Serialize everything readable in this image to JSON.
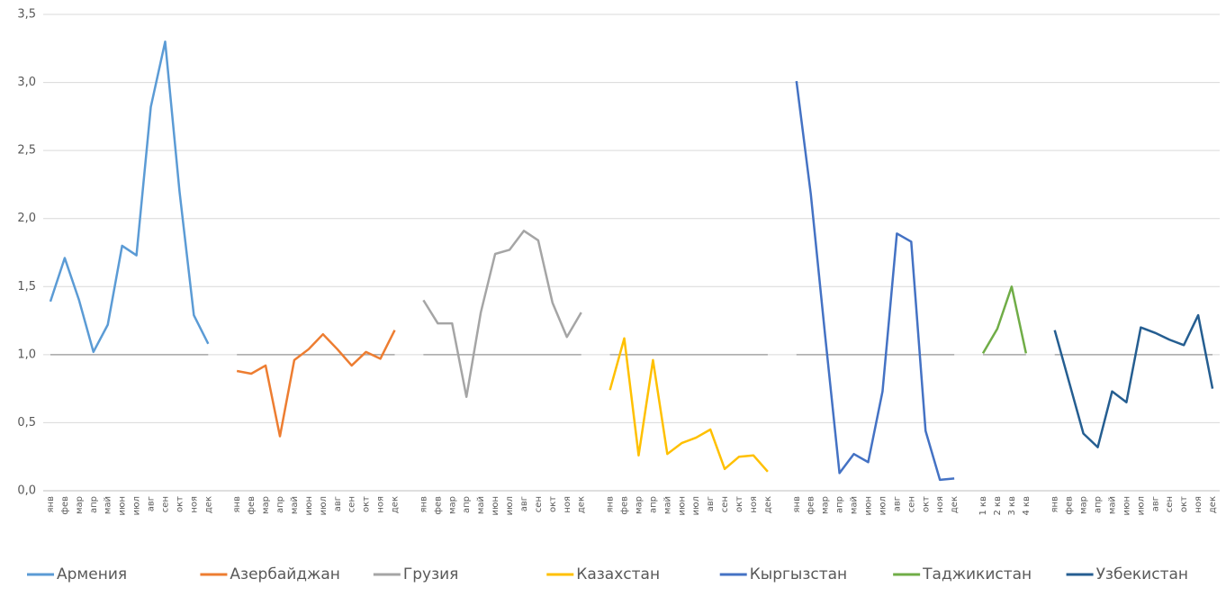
{
  "chart_data": {
    "type": "line",
    "categories": [
      "янв",
      "фев",
      "мар",
      "апр",
      "май",
      "июн",
      "июл",
      "авг",
      "сен",
      "окт",
      "ноя",
      "дек",
      null,
      "янв",
      "фев",
      "мар",
      "апр",
      "май",
      "июн",
      "июл",
      "авг",
      "сен",
      "окт",
      "ноя",
      "дек",
      null,
      "янв",
      "фев",
      "мар",
      "апр",
      "май",
      "июн",
      "июл",
      "авг",
      "сен",
      "окт",
      "ноя",
      "дек",
      null,
      "янв",
      "фев",
      "мар",
      "апр",
      "май",
      "июн",
      "июл",
      "авг",
      "сен",
      "окт",
      "ноя",
      "дек",
      null,
      "янв",
      "фев",
      "мар",
      "апр",
      "май",
      "июн",
      "июл",
      "авг",
      "сен",
      "окт",
      "ноя",
      "дек",
      null,
      "1 кв",
      "2 кв",
      "3 кв",
      "4 кв",
      null,
      "янв",
      "фев",
      "мар",
      "апр",
      "май",
      "июн",
      "июл",
      "авг",
      "сен",
      "окт",
      "ноя",
      "дек"
    ],
    "series": [
      {
        "name": "Армения",
        "color": "#5b9bd5",
        "values": [
          1.39,
          1.71,
          1.4,
          1.02,
          1.22,
          1.8,
          1.73,
          2.82,
          3.3,
          2.2,
          1.29,
          1.08,
          null,
          null,
          null,
          null,
          null,
          null,
          null,
          null,
          null,
          null,
          null,
          null,
          null,
          null,
          null,
          null,
          null,
          null,
          null,
          null,
          null,
          null,
          null,
          null,
          null,
          null,
          null,
          null,
          null,
          null,
          null,
          null,
          null,
          null,
          null,
          null,
          null,
          null,
          null,
          null,
          null,
          null,
          null,
          null,
          null,
          null,
          null,
          null,
          null,
          null,
          null,
          null,
          null,
          null,
          null,
          null,
          null,
          null,
          null,
          null,
          null,
          null,
          null,
          null,
          null,
          null,
          null,
          null,
          null,
          null
        ]
      },
      {
        "name": "Азербайджан",
        "color": "#ed7d31",
        "values": [
          null,
          null,
          null,
          null,
          null,
          null,
          null,
          null,
          null,
          null,
          null,
          null,
          null,
          0.88,
          0.86,
          0.92,
          0.4,
          0.96,
          1.04,
          1.15,
          1.04,
          0.92,
          1.02,
          0.97,
          1.18,
          null,
          null,
          null,
          null,
          null,
          null,
          null,
          null,
          null,
          null,
          null,
          null,
          null,
          null,
          null,
          null,
          null,
          null,
          null,
          null,
          null,
          null,
          null,
          null,
          null,
          null,
          null,
          null,
          null,
          null,
          null,
          null,
          null,
          null,
          null,
          null,
          null,
          null,
          null,
          null,
          null,
          null,
          null,
          null,
          null,
          null,
          null,
          null,
          null,
          null,
          null,
          null,
          null,
          null,
          null,
          null,
          null
        ]
      },
      {
        "name": "Грузия",
        "color": "#a5a5a5",
        "values": [
          null,
          null,
          null,
          null,
          null,
          null,
          null,
          null,
          null,
          null,
          null,
          null,
          null,
          null,
          null,
          null,
          null,
          null,
          null,
          null,
          null,
          null,
          null,
          null,
          null,
          null,
          1.4,
          1.23,
          1.23,
          0.69,
          1.31,
          1.74,
          1.77,
          1.91,
          1.84,
          1.38,
          1.13,
          1.31,
          null,
          null,
          null,
          null,
          null,
          null,
          null,
          null,
          null,
          null,
          null,
          null,
          null,
          null,
          null,
          null,
          null,
          null,
          null,
          null,
          null,
          null,
          null,
          null,
          null,
          null,
          null,
          null,
          null,
          null,
          null,
          null,
          null,
          null,
          null,
          null,
          null,
          null,
          null,
          null,
          null,
          null,
          null,
          null
        ]
      },
      {
        "name": "Казахстан",
        "color": "#ffc000",
        "values": [
          null,
          null,
          null,
          null,
          null,
          null,
          null,
          null,
          null,
          null,
          null,
          null,
          null,
          null,
          null,
          null,
          null,
          null,
          null,
          null,
          null,
          null,
          null,
          null,
          null,
          null,
          null,
          null,
          null,
          null,
          null,
          null,
          null,
          null,
          null,
          null,
          null,
          null,
          null,
          0.74,
          1.12,
          0.26,
          0.96,
          0.27,
          0.35,
          0.39,
          0.45,
          0.16,
          0.25,
          0.26,
          0.14,
          null,
          null,
          null,
          null,
          null,
          null,
          null,
          null,
          null,
          null,
          null,
          null,
          null,
          null,
          null,
          null,
          null,
          null,
          null,
          null,
          null,
          null,
          null,
          null,
          null,
          null,
          null,
          null,
          null,
          null,
          null
        ]
      },
      {
        "name": "Кыргызстан",
        "color": "#4472c4",
        "values": [
          null,
          null,
          null,
          null,
          null,
          null,
          null,
          null,
          null,
          null,
          null,
          null,
          null,
          null,
          null,
          null,
          null,
          null,
          null,
          null,
          null,
          null,
          null,
          null,
          null,
          null,
          null,
          null,
          null,
          null,
          null,
          null,
          null,
          null,
          null,
          null,
          null,
          null,
          null,
          null,
          null,
          null,
          null,
          null,
          null,
          null,
          null,
          null,
          null,
          null,
          null,
          null,
          3.01,
          2.18,
          1.14,
          0.13,
          0.27,
          0.21,
          0.73,
          1.89,
          1.83,
          0.44,
          0.08,
          0.09,
          null,
          null,
          null,
          null,
          null,
          null,
          null,
          null,
          null,
          null,
          null,
          null,
          null,
          null,
          null,
          null,
          null,
          null
        ]
      },
      {
        "name": "Таджикистан",
        "color": "#70ad47",
        "values": [
          null,
          null,
          null,
          null,
          null,
          null,
          null,
          null,
          null,
          null,
          null,
          null,
          null,
          null,
          null,
          null,
          null,
          null,
          null,
          null,
          null,
          null,
          null,
          null,
          null,
          null,
          null,
          null,
          null,
          null,
          null,
          null,
          null,
          null,
          null,
          null,
          null,
          null,
          null,
          null,
          null,
          null,
          null,
          null,
          null,
          null,
          null,
          null,
          null,
          null,
          null,
          null,
          null,
          null,
          null,
          null,
          null,
          null,
          null,
          null,
          null,
          null,
          null,
          null,
          null,
          1.01,
          1.19,
          1.5,
          1.01,
          null,
          null,
          null,
          null,
          null,
          null,
          null,
          null,
          null,
          null,
          null,
          null,
          null
        ]
      },
      {
        "name": "Узбекистан",
        "color": "#255e91",
        "values": [
          null,
          null,
          null,
          null,
          null,
          null,
          null,
          null,
          null,
          null,
          null,
          null,
          null,
          null,
          null,
          null,
          null,
          null,
          null,
          null,
          null,
          null,
          null,
          null,
          null,
          null,
          null,
          null,
          null,
          null,
          null,
          null,
          null,
          null,
          null,
          null,
          null,
          null,
          null,
          null,
          null,
          null,
          null,
          null,
          null,
          null,
          null,
          null,
          null,
          null,
          null,
          null,
          null,
          null,
          null,
          null,
          null,
          null,
          null,
          null,
          null,
          null,
          null,
          null,
          null,
          null,
          null,
          null,
          null,
          null,
          1.18,
          0.8,
          0.42,
          0.32,
          0.73,
          0.65,
          1.2,
          1.16,
          1.11,
          1.07,
          1.29,
          0.75
        ]
      }
    ],
    "reference_line": 1,
    "ylim": [
      0,
      3.5
    ],
    "yticks": [
      {
        "value": 0,
        "label": "0,0"
      },
      {
        "value": 0.5,
        "label": "0,5"
      },
      {
        "value": 1,
        "label": "1,0"
      },
      {
        "value": 1.5,
        "label": "1,5"
      },
      {
        "value": 2,
        "label": "2,0"
      },
      {
        "value": 2.5,
        "label": "2,5"
      },
      {
        "value": 3,
        "label": "3,0"
      },
      {
        "value": 3.5,
        "label": "3,5"
      }
    ],
    "grid": true,
    "legend": "bottom"
  }
}
